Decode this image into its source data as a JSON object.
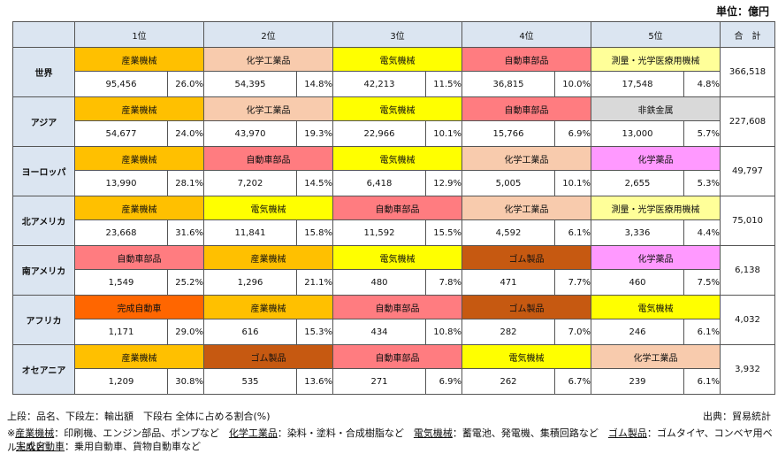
{
  "unit_label": "単位：億円",
  "header": {
    "ranks": [
      "1位",
      "2位",
      "3位",
      "4位",
      "5位"
    ],
    "total": "合　計"
  },
  "category_colors": {
    "産業機械": "#ffc000",
    "化学工業品": "#f8cbad",
    "電気機械": "#ffff00",
    "自動車部品": "#ff7c80",
    "測量・光学医療用機械": "#ffff99",
    "非鉄金属": "#d9d9d9",
    "化学薬品": "#ff99ff",
    "ゴム製品": "#c65911",
    "完成自動車": "#ff6600"
  },
  "rows": [
    {
      "region": "世界",
      "items": [
        {
          "name": "産業機械",
          "value": "95,456",
          "pct": "26.0%"
        },
        {
          "name": "化学工業品",
          "value": "54,395",
          "pct": "14.8%"
        },
        {
          "name": "電気機械",
          "value": "42,213",
          "pct": "11.5%"
        },
        {
          "name": "自動車部品",
          "value": "36,815",
          "pct": "10.0%"
        },
        {
          "name": "測量・光学医療用機械",
          "value": "17,548",
          "pct": "4.8%"
        }
      ],
      "total": "366,518"
    },
    {
      "region": "アジア",
      "items": [
        {
          "name": "産業機械",
          "value": "54,677",
          "pct": "24.0%"
        },
        {
          "name": "化学工業品",
          "value": "43,970",
          "pct": "19.3%"
        },
        {
          "name": "電気機械",
          "value": "22,966",
          "pct": "10.1%"
        },
        {
          "name": "自動車部品",
          "value": "15,766",
          "pct": "6.9%"
        },
        {
          "name": "非鉄金属",
          "value": "13,000",
          "pct": "5.7%"
        }
      ],
      "total": "227,608"
    },
    {
      "region": "ヨーロッパ",
      "items": [
        {
          "name": "産業機械",
          "value": "13,990",
          "pct": "28.1%"
        },
        {
          "name": "自動車部品",
          "value": "7,202",
          "pct": "14.5%"
        },
        {
          "name": "電気機械",
          "value": "6,418",
          "pct": "12.9%"
        },
        {
          "name": "化学工業品",
          "value": "5,005",
          "pct": "10.1%"
        },
        {
          "name": "化学薬品",
          "value": "2,655",
          "pct": "5.3%"
        }
      ],
      "total": "49,797"
    },
    {
      "region": "北アメリカ",
      "items": [
        {
          "name": "産業機械",
          "value": "23,668",
          "pct": "31.6%"
        },
        {
          "name": "電気機械",
          "value": "11,841",
          "pct": "15.8%"
        },
        {
          "name": "自動車部品",
          "value": "11,592",
          "pct": "15.5%"
        },
        {
          "name": "化学工業品",
          "value": "4,592",
          "pct": "6.1%"
        },
        {
          "name": "測量・光学医療用機械",
          "value": "3,336",
          "pct": "4.4%"
        }
      ],
      "total": "75,010"
    },
    {
      "region": "南アメリカ",
      "items": [
        {
          "name": "自動車部品",
          "value": "1,549",
          "pct": "25.2%"
        },
        {
          "name": "産業機械",
          "value": "1,296",
          "pct": "21.1%"
        },
        {
          "name": "電気機械",
          "value": "480",
          "pct": "7.8%"
        },
        {
          "name": "ゴム製品",
          "value": "471",
          "pct": "7.7%"
        },
        {
          "name": "化学薬品",
          "value": "460",
          "pct": "7.5%"
        }
      ],
      "total": "6,138"
    },
    {
      "region": "アフリカ",
      "items": [
        {
          "name": "完成自動車",
          "value": "1,171",
          "pct": "29.0%"
        },
        {
          "name": "産業機械",
          "value": "616",
          "pct": "15.3%"
        },
        {
          "name": "自動車部品",
          "value": "434",
          "pct": "10.8%"
        },
        {
          "name": "ゴム製品",
          "value": "282",
          "pct": "7.0%"
        },
        {
          "name": "電気機械",
          "value": "246",
          "pct": "6.1%"
        }
      ],
      "total": "4,032"
    },
    {
      "region": "オセアニア",
      "items": [
        {
          "name": "産業機械",
          "value": "1,209",
          "pct": "30.8%"
        },
        {
          "name": "ゴム製品",
          "value": "535",
          "pct": "13.6%"
        },
        {
          "name": "自動車部品",
          "value": "271",
          "pct": "6.9%"
        },
        {
          "name": "電気機械",
          "value": "262",
          "pct": "6.7%"
        },
        {
          "name": "化学工業品",
          "value": "239",
          "pct": "6.1%"
        }
      ],
      "total": "3,932"
    }
  ],
  "footer": {
    "legend": "上段：品名、下段左：輸出額　下段右 全体に占める割合(%)",
    "source": "出典：貿易統計",
    "notes": [
      {
        "prefix": "※",
        "term": "産業機械",
        "desc": "：印刷機、エンジン部品、ポンプなど　"
      },
      {
        "prefix": "",
        "term": "化学工業品",
        "desc": "：染料・塗料・合成樹脂など　"
      },
      {
        "prefix": "",
        "term": "電気機械",
        "desc": "：蓄電池、発電機、集積回路など　"
      },
      {
        "prefix": "",
        "term": "ゴム製品",
        "desc": "：ゴムタイヤ、コンベヤ用ベルトなど"
      }
    ],
    "notes2": [
      {
        "term": "完成自動車",
        "desc": "：乗用自動車、貨物自動車など"
      }
    ]
  }
}
